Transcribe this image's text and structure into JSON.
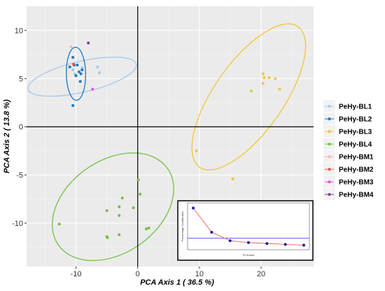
{
  "chart_data": {
    "type": "scatter",
    "xlabel": "PCA Axis 1 ( 36.5 %)",
    "ylabel": "PCA Axis 2 ( 13.8 %)",
    "xlim": [
      -18,
      28.5
    ],
    "ylim": [
      -14.5,
      12.5
    ],
    "xticks": [
      -10,
      0,
      10,
      20
    ],
    "yticks": [
      -10,
      -5,
      0,
      5,
      10
    ],
    "grid": true,
    "legend_position": "right",
    "reference_lines": {
      "x": 0,
      "y": 0
    },
    "series": [
      {
        "name": "PeHy-BL1",
        "color": "#a6c8ea",
        "points": [
          [
            -10.5,
            5.9
          ],
          [
            -10.2,
            5.5
          ],
          [
            -9.0,
            6.1
          ],
          [
            -6.5,
            6.2
          ],
          [
            -6.2,
            5.6
          ]
        ],
        "ellipse": {
          "center": [
            -9,
            5.2
          ],
          "rx": 9,
          "ry": 1.6,
          "angle_deg": 13
        }
      },
      {
        "name": "PeHy-BL2",
        "color": "#1a78c2",
        "points": [
          [
            -11.0,
            6.2
          ],
          [
            -10.5,
            7.2
          ],
          [
            -10.3,
            6.4
          ],
          [
            -10.0,
            5.3
          ],
          [
            -9.8,
            6.4
          ],
          [
            -9.5,
            5.7
          ],
          [
            -9.3,
            4.7
          ],
          [
            -9.2,
            5.5
          ],
          [
            -9.0,
            5.9
          ],
          [
            -10.5,
            2.2
          ]
        ],
        "ellipse": {
          "center": [
            -10,
            5.5
          ],
          "rx": 4.3,
          "ry": 1.0,
          "angle_deg": 91
        }
      },
      {
        "name": "PeHy-BL3",
        "color": "#f2c43c",
        "points": [
          [
            20.3,
            5.5
          ],
          [
            20.5,
            5.1
          ],
          [
            21.3,
            5.1
          ],
          [
            22.3,
            5.0
          ],
          [
            20.3,
            4.5
          ],
          [
            23.0,
            3.9
          ],
          [
            18.4,
            3.7
          ],
          [
            9.5,
            -2.5
          ],
          [
            15.4,
            -5.4
          ]
        ],
        "ellipse": {
          "center": [
            18,
            3.1
          ],
          "rx": 13.9,
          "ry": 3.6,
          "angle_deg": 55
        }
      },
      {
        "name": "PeHy-BL4",
        "color": "#72bf44",
        "points": [
          [
            0.1,
            -5.5
          ],
          [
            0.4,
            -7.0
          ],
          [
            -2.5,
            -7.4
          ],
          [
            -5.0,
            -8.7
          ],
          [
            -3.0,
            -8.3
          ],
          [
            -0.7,
            -8.4
          ],
          [
            -3.0,
            -9.2
          ],
          [
            -12.7,
            -10.1
          ],
          [
            1.4,
            -10.6
          ],
          [
            1.8,
            -10.5
          ],
          [
            -5.0,
            -11.4
          ],
          [
            -4.9,
            -11.5
          ],
          [
            -3.0,
            -11.2
          ]
        ],
        "ellipse": {
          "center": [
            -4,
            -8.3
          ],
          "rx": 10.8,
          "ry": 4.8,
          "angle_deg": 35
        }
      },
      {
        "name": "PeHy-BM1",
        "color": "#f5b6b6",
        "points": [
          [
            -10.8,
            8.3
          ]
        ]
      },
      {
        "name": "PeHy-BM2",
        "color": "#e8554a",
        "points": [
          [
            -10.4,
            6.5
          ]
        ]
      },
      {
        "name": "PeHy-BM3",
        "color": "#e64fd6",
        "points": [
          [
            -7.3,
            3.9
          ]
        ]
      },
      {
        "name": "PeHy-BM4",
        "color": "#7c3a8c",
        "points": [
          [
            -8.0,
            8.7
          ]
        ]
      }
    ],
    "inset": {
      "type": "line",
      "ylabel": "Percentage Contribution",
      "xlabel": "PCA Axis",
      "x": [
        1,
        2,
        3,
        4,
        5,
        6,
        7
      ],
      "values": [
        36.5,
        13.8,
        5.8,
        4.1,
        3.2,
        2.4,
        1.6
      ],
      "reference_value": 8.2,
      "ylim": [
        0,
        40
      ],
      "line_color": "#f06060",
      "point_color": "#1a1aaa",
      "reference_color": "#6464ff"
    }
  }
}
